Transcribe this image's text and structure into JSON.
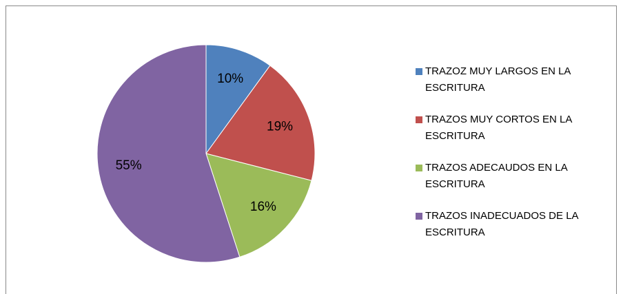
{
  "chart_data": {
    "type": "pie",
    "categories": [
      "TRAZOZ MUY LARGOS EN  LA ESCRITURA",
      "TRAZOS MUY CORTOS EN LA ESCRITURA",
      "TRAZOS ADECAUDOS EN LA ESCRITURA",
      "TRAZOS INADECUADOS DE LA ESCRITURA"
    ],
    "values": [
      10,
      19,
      16,
      55
    ],
    "value_labels": [
      "10%",
      "19%",
      "16%",
      "55%"
    ],
    "colors": [
      "#4f81bd",
      "#c0504d",
      "#9bbb59",
      "#8064a2"
    ],
    "legend": "right"
  }
}
